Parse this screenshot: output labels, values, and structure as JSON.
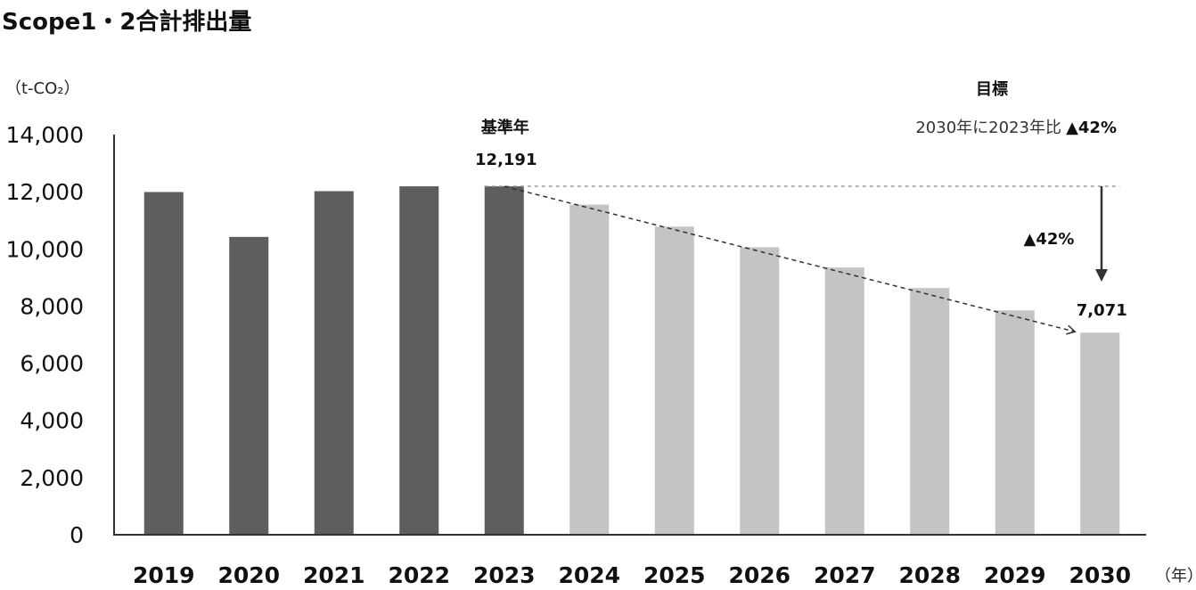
{
  "chart_data": {
    "type": "bar",
    "title": "Scope1・2合計排出量",
    "ylabel": "（t-CO₂）",
    "xlabel_unit": "（年）",
    "ylim": [
      0,
      14000
    ],
    "yticks": [
      0,
      2000,
      4000,
      6000,
      8000,
      10000,
      12000,
      14000
    ],
    "ytick_labels": [
      "0",
      "2,000",
      "4,000",
      "6,000",
      "8,000",
      "10,000",
      "12,000",
      "14,000"
    ],
    "categories": [
      "2019",
      "2020",
      "2021",
      "2022",
      "2023",
      "2024",
      "2025",
      "2026",
      "2027",
      "2028",
      "2029",
      "2030"
    ],
    "values": [
      11990,
      10420,
      12020,
      12190,
      12191,
      11550,
      10780,
      10060,
      9350,
      8630,
      7850,
      7071
    ],
    "bar_kinds": [
      "actual",
      "actual",
      "actual",
      "actual",
      "actual",
      "plan",
      "plan",
      "plan",
      "plan",
      "plan",
      "plan",
      "plan"
    ],
    "colors": {
      "actual": "#5e5e5e",
      "plan": "#c4c4c4",
      "axis": "#333333",
      "guide": "#999999"
    },
    "grid": false,
    "annotations": {
      "base_year_label": "基準年",
      "base_year_value": "12,191",
      "target_heading": "目標",
      "target_text": "2030年に2023年比",
      "target_pct": "▲42%",
      "reduction_label": "▲42%",
      "target_value": "7,071"
    }
  }
}
